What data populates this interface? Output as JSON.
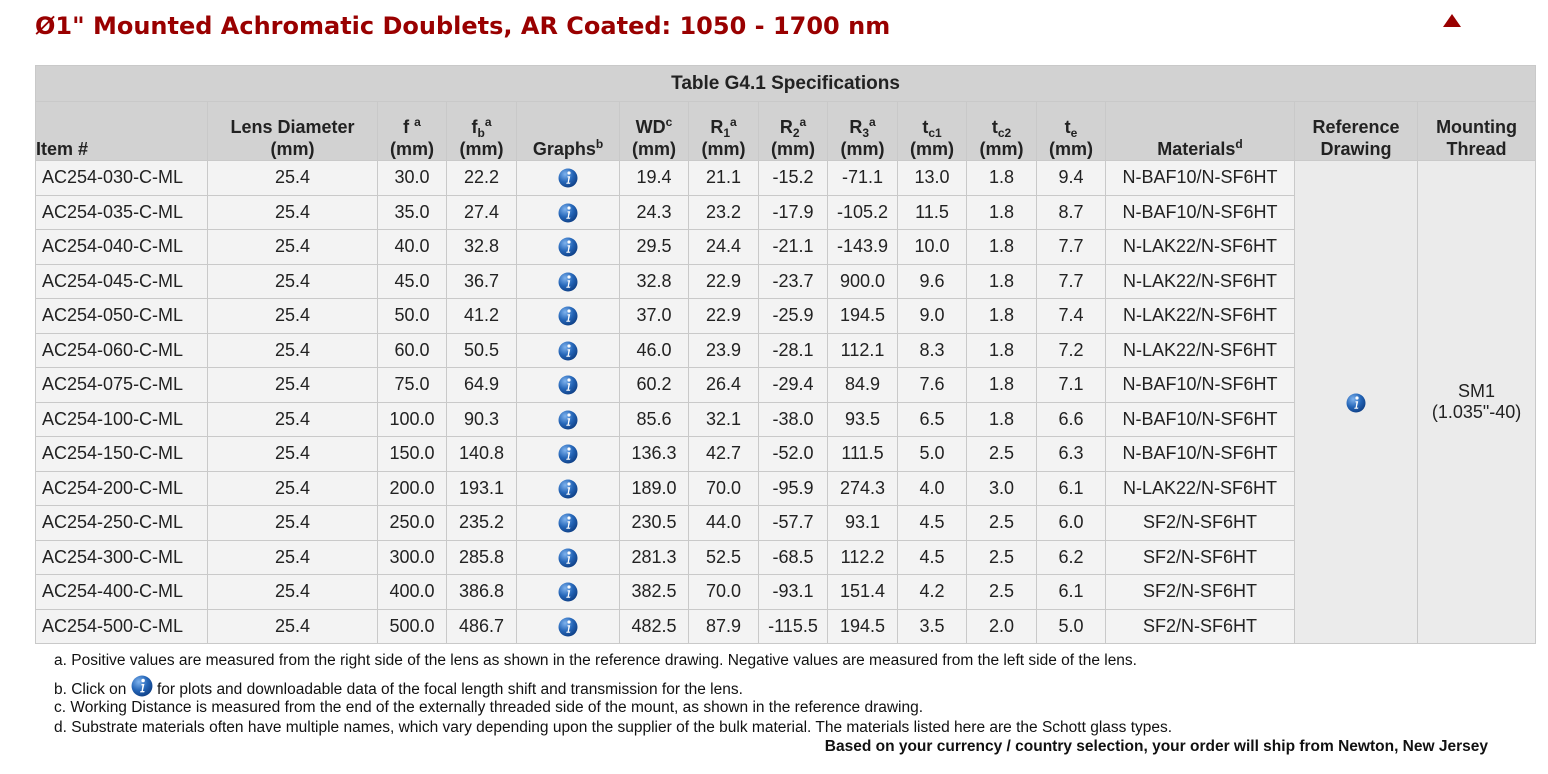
{
  "page": {
    "title": "Ø1\" Mounted Achromatic Doublets, AR Coated: 1050 - 1700 nm",
    "back_to_top_icon": "triangle-up-icon",
    "accent_color": "#990000"
  },
  "table": {
    "caption": "Table G4.1  Specifications",
    "headers": {
      "item": "Item #",
      "lens_diameter_line1": "Lens Diameter",
      "lens_diameter_line2": "(mm)",
      "f_sym": "f",
      "f_sup": "a",
      "f_unit": "(mm)",
      "fb_sym": "f",
      "fb_sub": "b",
      "fb_sup": "a",
      "fb_unit": "(mm)",
      "graphs": "Graphs",
      "graphs_sup": "b",
      "wd_sym": "WD",
      "wd_sup": "c",
      "wd_unit": "(mm)",
      "r1_sym": "R",
      "r1_sub": "1",
      "r1_sup": "a",
      "r1_unit": "(mm)",
      "r2_sym": "R",
      "r2_sub": "2",
      "r2_sup": "a",
      "r2_unit": "(mm)",
      "r3_sym": "R",
      "r3_sub": "3",
      "r3_sup": "a",
      "r3_unit": "(mm)",
      "tc1_sym": "t",
      "tc1_sub": "c1",
      "tc1_unit": "(mm)",
      "tc2_sym": "t",
      "tc2_sub": "c2",
      "tc2_unit": "(mm)",
      "te_sym": "t",
      "te_sub": "e",
      "te_unit": "(mm)",
      "materials": "Materials",
      "materials_sup": "d",
      "reference_line1": "Reference",
      "reference_line2": "Drawing",
      "mounting_line1": "Mounting",
      "mounting_line2": "Thread"
    },
    "rows": [
      {
        "item": "AC254-030-C-ML",
        "dia": "25.4",
        "f": "30.0",
        "fb": "22.2",
        "wd": "19.4",
        "r1": "21.1",
        "r2": "-15.2",
        "r3": "-71.1",
        "tc1": "13.0",
        "tc2": "1.8",
        "te": "9.4",
        "mat": "N-BAF10/N-SF6HT"
      },
      {
        "item": "AC254-035-C-ML",
        "dia": "25.4",
        "f": "35.0",
        "fb": "27.4",
        "wd": "24.3",
        "r1": "23.2",
        "r2": "-17.9",
        "r3": "-105.2",
        "tc1": "11.5",
        "tc2": "1.8",
        "te": "8.7",
        "mat": "N-BAF10/N-SF6HT"
      },
      {
        "item": "AC254-040-C-ML",
        "dia": "25.4",
        "f": "40.0",
        "fb": "32.8",
        "wd": "29.5",
        "r1": "24.4",
        "r2": "-21.1",
        "r3": "-143.9",
        "tc1": "10.0",
        "tc2": "1.8",
        "te": "7.7",
        "mat": "N-LAK22/N-SF6HT"
      },
      {
        "item": "AC254-045-C-ML",
        "dia": "25.4",
        "f": "45.0",
        "fb": "36.7",
        "wd": "32.8",
        "r1": "22.9",
        "r2": "-23.7",
        "r3": "900.0",
        "tc1": "9.6",
        "tc2": "1.8",
        "te": "7.7",
        "mat": "N-LAK22/N-SF6HT"
      },
      {
        "item": "AC254-050-C-ML",
        "dia": "25.4",
        "f": "50.0",
        "fb": "41.2",
        "wd": "37.0",
        "r1": "22.9",
        "r2": "-25.9",
        "r3": "194.5",
        "tc1": "9.0",
        "tc2": "1.8",
        "te": "7.4",
        "mat": "N-LAK22/N-SF6HT"
      },
      {
        "item": "AC254-060-C-ML",
        "dia": "25.4",
        "f": "60.0",
        "fb": "50.5",
        "wd": "46.0",
        "r1": "23.9",
        "r2": "-28.1",
        "r3": "112.1",
        "tc1": "8.3",
        "tc2": "1.8",
        "te": "7.2",
        "mat": "N-LAK22/N-SF6HT"
      },
      {
        "item": "AC254-075-C-ML",
        "dia": "25.4",
        "f": "75.0",
        "fb": "64.9",
        "wd": "60.2",
        "r1": "26.4",
        "r2": "-29.4",
        "r3": "84.9",
        "tc1": "7.6",
        "tc2": "1.8",
        "te": "7.1",
        "mat": "N-BAF10/N-SF6HT"
      },
      {
        "item": "AC254-100-C-ML",
        "dia": "25.4",
        "f": "100.0",
        "fb": "90.3",
        "wd": "85.6",
        "r1": "32.1",
        "r2": "-38.0",
        "r3": "93.5",
        "tc1": "6.5",
        "tc2": "1.8",
        "te": "6.6",
        "mat": "N-BAF10/N-SF6HT"
      },
      {
        "item": "AC254-150-C-ML",
        "dia": "25.4",
        "f": "150.0",
        "fb": "140.8",
        "wd": "136.3",
        "r1": "42.7",
        "r2": "-52.0",
        "r3": "111.5",
        "tc1": "5.0",
        "tc2": "2.5",
        "te": "6.3",
        "mat": "N-BAF10/N-SF6HT"
      },
      {
        "item": "AC254-200-C-ML",
        "dia": "25.4",
        "f": "200.0",
        "fb": "193.1",
        "wd": "189.0",
        "r1": "70.0",
        "r2": "-95.9",
        "r3": "274.3",
        "tc1": "4.0",
        "tc2": "3.0",
        "te": "6.1",
        "mat": "N-LAK22/N-SF6HT"
      },
      {
        "item": "AC254-250-C-ML",
        "dia": "25.4",
        "f": "250.0",
        "fb": "235.2",
        "wd": "230.5",
        "r1": "44.0",
        "r2": "-57.7",
        "r3": "93.1",
        "tc1": "4.5",
        "tc2": "2.5",
        "te": "6.0",
        "mat": "SF2/N-SF6HT"
      },
      {
        "item": "AC254-300-C-ML",
        "dia": "25.4",
        "f": "300.0",
        "fb": "285.8",
        "wd": "281.3",
        "r1": "52.5",
        "r2": "-68.5",
        "r3": "112.2",
        "tc1": "4.5",
        "tc2": "2.5",
        "te": "6.2",
        "mat": "SF2/N-SF6HT"
      },
      {
        "item": "AC254-400-C-ML",
        "dia": "25.4",
        "f": "400.0",
        "fb": "386.8",
        "wd": "382.5",
        "r1": "70.0",
        "r2": "-93.1",
        "r3": "151.4",
        "tc1": "4.2",
        "tc2": "2.5",
        "te": "6.1",
        "mat": "SF2/N-SF6HT"
      },
      {
        "item": "AC254-500-C-ML",
        "dia": "25.4",
        "f": "500.0",
        "fb": "486.7",
        "wd": "482.5",
        "r1": "87.9",
        "r2": "-115.5",
        "r3": "194.5",
        "tc1": "3.5",
        "tc2": "2.0",
        "te": "5.0",
        "mat": "SF2/N-SF6HT"
      }
    ],
    "graph_icon": "info-icon",
    "reference_icon": "info-icon",
    "mounting_thread_line1": "SM1",
    "mounting_thread_line2": "(1.035\"-40)"
  },
  "footnotes": {
    "a": "a. Positive values are measured from the right side of the lens as shown in the reference drawing. Negative values are measured from the left side of the lens.",
    "b_before": "b. Click on",
    "b_after": "for plots and downloadable data of the focal length shift and transmission for the lens.",
    "c": "c. Working Distance is measured from the end of the externally threaded side of the mount, as shown in the reference drawing.",
    "d": "d. Substrate materials often have multiple names, which vary depending upon the supplier of the bulk material. The materials listed here are the Schott glass types."
  },
  "shipping_note": "Based on your currency / country selection, your order will ship from Newton, New Jersey",
  "colors": {
    "header_bg": "#d2d2d2",
    "cell_bg": "#f3f3f3",
    "icon_blue": "#1f5fa8"
  }
}
